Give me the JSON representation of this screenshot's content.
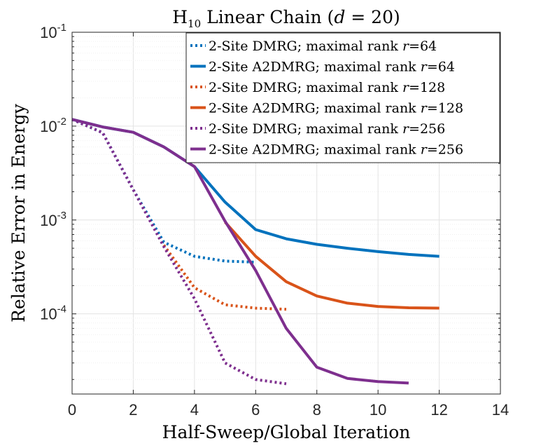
{
  "chart_data": {
    "type": "line",
    "title": "H10 Linear Chain (d = 20)",
    "title_parts": {
      "main": "H",
      "subscript": "10",
      "rest": " Linear Chain (",
      "var": "d",
      "eq": " = 20)"
    },
    "xlabel": "Half-Sweep/Global Iteration",
    "ylabel": "Relative Error in Energy",
    "xscale": "linear",
    "yscale": "log",
    "xlim": [
      0,
      14
    ],
    "ylim": [
      1.4e-05,
      0.1
    ],
    "x_ticks": [
      0,
      2,
      4,
      6,
      8,
      10,
      12,
      14
    ],
    "x_tick_labels": [
      "0",
      "2",
      "4",
      "6",
      "8",
      "10",
      "12",
      "14"
    ],
    "y_ticks": [
      0.0001,
      0.001,
      0.01,
      0.1
    ],
    "y_tick_labels": [
      {
        "base": "10",
        "exp": "-4"
      },
      {
        "base": "10",
        "exp": "-3"
      },
      {
        "base": "10",
        "exp": "-2"
      },
      {
        "base": "10",
        "exp": "-1"
      }
    ],
    "grid": true,
    "minor_grid": true,
    "legend_position": "top-right",
    "series": [
      {
        "name": "2-Site DMRG; maximal rank r=64",
        "label_prefix": "2-Site DMRG; maximal rank ",
        "label_var": "r",
        "label_suffix": "=64",
        "color": "#0072BD",
        "style": "dotted",
        "x": [
          0,
          1,
          2,
          3,
          4,
          5,
          6
        ],
        "y": [
          0.0118,
          0.0085,
          0.0021,
          0.00058,
          0.00041,
          0.000365,
          0.000355
        ]
      },
      {
        "name": "2-Site A2DMRG; maximal rank r=64",
        "label_prefix": "2-Site A2DMRG; maximal rank ",
        "label_var": "r",
        "label_suffix": "=64",
        "color": "#0072BD",
        "style": "solid",
        "x": [
          0,
          1,
          2,
          3,
          4,
          5,
          6,
          7,
          8,
          9,
          10,
          11,
          12
        ],
        "y": [
          0.0118,
          0.0098,
          0.0086,
          0.006,
          0.0037,
          0.00155,
          0.00079,
          0.00063,
          0.00055,
          0.0005,
          0.00046,
          0.00043,
          0.00041
        ]
      },
      {
        "name": "2-Site DMRG; maximal rank r=128",
        "label_prefix": "2-Site DMRG; maximal rank ",
        "label_var": "r",
        "label_suffix": "=128",
        "color": "#D95319",
        "style": "dotted",
        "x": [
          3,
          4,
          5,
          6,
          7
        ],
        "y": [
          0.00054,
          0.00019,
          0.000125,
          0.000115,
          0.000112
        ]
      },
      {
        "name": "2-Site A2DMRG; maximal rank r=128",
        "label_prefix": "2-Site A2DMRG; maximal rank ",
        "label_var": "r",
        "label_suffix": "=128",
        "color": "#D95319",
        "style": "solid",
        "x": [
          5,
          6,
          7,
          8,
          9,
          10,
          11,
          12
        ],
        "y": [
          0.00095,
          0.00041,
          0.00022,
          0.000155,
          0.00013,
          0.00012,
          0.000116,
          0.000115
        ]
      },
      {
        "name": "2-Site DMRG; maximal rank r=256",
        "label_prefix": "2-Site DMRG; maximal rank ",
        "label_var": "r",
        "label_suffix": "=256",
        "color": "#7E2F8E",
        "style": "dotted",
        "x": [
          0,
          1,
          2,
          3,
          4,
          5,
          6,
          7
        ],
        "y": [
          0.0118,
          0.0085,
          0.0021,
          0.00052,
          0.000145,
          3e-05,
          2e-05,
          1.8e-05
        ]
      },
      {
        "name": "2-Site A2DMRG; maximal rank r=256",
        "label_prefix": "2-Site A2DMRG; maximal rank ",
        "label_var": "r",
        "label_suffix": "=256",
        "color": "#7E2F8E",
        "style": "solid",
        "x": [
          0,
          1,
          2,
          3,
          4,
          5,
          6,
          7,
          8,
          9,
          10,
          11
        ],
        "y": [
          0.0118,
          0.0098,
          0.0086,
          0.006,
          0.0037,
          0.00097,
          0.00029,
          7e-05,
          2.7e-05,
          2.05e-05,
          1.9e-05,
          1.83e-05
        ]
      }
    ]
  }
}
